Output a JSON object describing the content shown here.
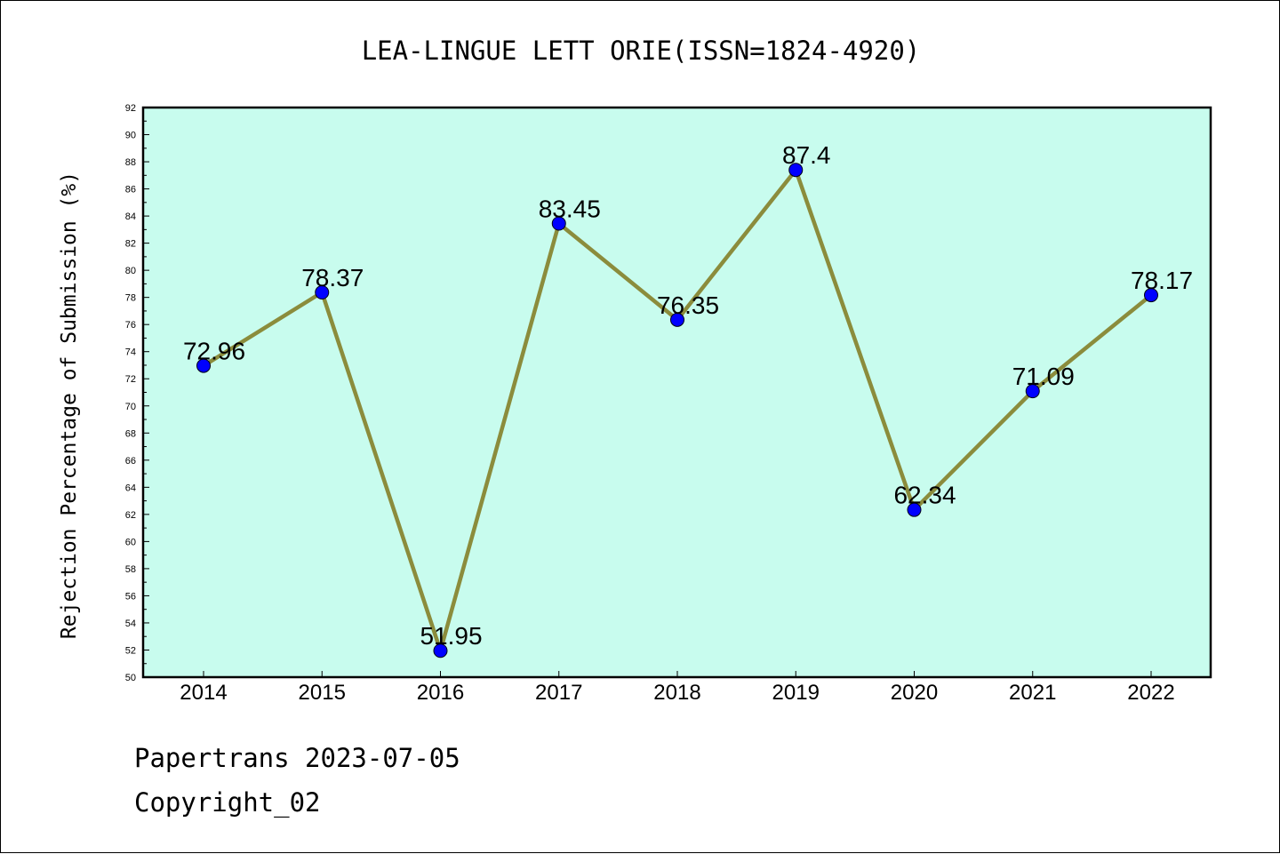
{
  "chart_data": {
    "type": "line",
    "title": "LEA-LINGUE LETT ORIE(ISSN=1824-4920)",
    "ylabel": "Rejection Percentage of Submission (%)",
    "xlabel": "",
    "categories": [
      "2014",
      "2015",
      "2016",
      "2017",
      "2018",
      "2019",
      "2020",
      "2021",
      "2022"
    ],
    "series": [
      {
        "values": [
          72.96,
          78.37,
          51.95,
          83.45,
          76.35,
          87.4,
          62.34,
          71.09,
          78.17
        ],
        "labels": [
          "72.96",
          "78.37",
          "51.95",
          "83.45",
          "76.35",
          "87.4",
          "62.34",
          "71.09",
          "78.17"
        ]
      }
    ],
    "ylim": [
      50,
      92
    ],
    "yticks": [
      "50",
      "52",
      "54",
      "56",
      "58",
      "60",
      "62",
      "64",
      "66",
      "68",
      "70",
      "72",
      "74",
      "76",
      "78",
      "80",
      "82",
      "84",
      "86",
      "88",
      "90",
      "92"
    ],
    "grid": false,
    "colors": {
      "plot_background": "#c8fcee",
      "line": "#8b8c3c",
      "marker": "#0000ff"
    }
  },
  "footer": {
    "line1": "Papertrans 2023-07-05",
    "line2": "Copyright_02"
  }
}
